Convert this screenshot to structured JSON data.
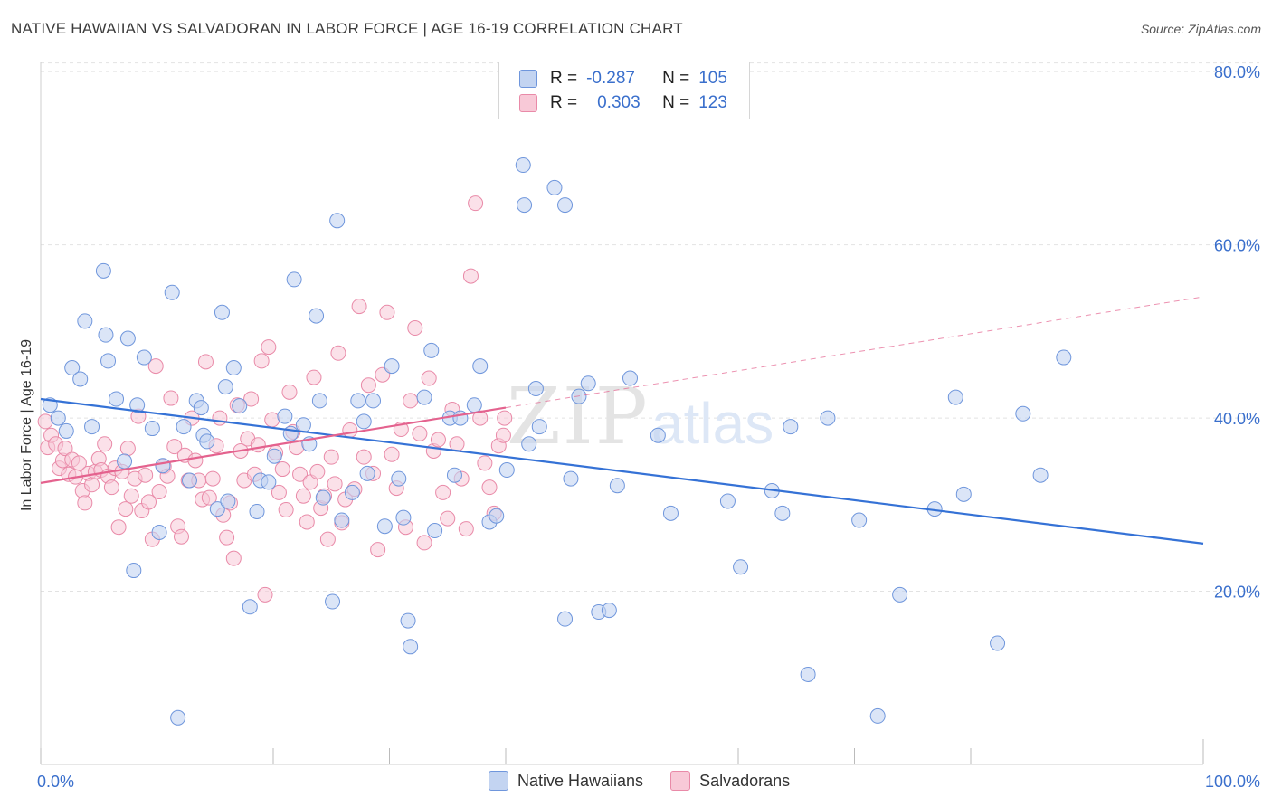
{
  "title": "NATIVE HAWAIIAN VS SALVADORAN IN LABOR FORCE | AGE 16-19 CORRELATION CHART",
  "source": "Source: ZipAtlas.com",
  "watermark": {
    "zip": "ZIP",
    "atlas": "atlas"
  },
  "legend": {
    "r_label": "R =",
    "n_label": "N =",
    "rows": [
      {
        "r": "-0.287",
        "n": "105"
      },
      {
        "r": "0.303",
        "n": "123"
      }
    ]
  },
  "colors": {
    "blue_fill": "#c3d4f1",
    "blue_stroke": "#6f96dc",
    "blue_line": "#3572d6",
    "pink_fill": "#f8c9d7",
    "pink_stroke": "#e98aa8",
    "pink_line": "#e4628e",
    "axis_text": "#3a6fcc",
    "grid": "#e2e2e2"
  },
  "chart_data": {
    "type": "scatter",
    "title": "NATIVE HAWAIIAN VS SALVADORAN IN LABOR FORCE | AGE 16-19 CORRELATION CHART",
    "xlabel": "",
    "ylabel": "In Labor Force | Age 16-19",
    "xlim": [
      0,
      100
    ],
    "ylim": [
      0,
      82
    ],
    "x_tick_labels": [
      "0.0%",
      "100.0%"
    ],
    "y_ticks": [
      20,
      40,
      60,
      80
    ],
    "y_tick_labels": [
      "20.0%",
      "40.0%",
      "60.0%",
      "80.0%"
    ],
    "grid": true,
    "legend_position": "top-center",
    "series": [
      {
        "name": "Native Hawaiians",
        "trend": {
          "x": [
            0,
            100
          ],
          "y": [
            42.2,
            25.5
          ]
        },
        "points": [
          [
            0.8,
            41.5
          ],
          [
            1.5,
            40
          ],
          [
            2.2,
            38.5
          ],
          [
            2.7,
            45.8
          ],
          [
            3.4,
            44.5
          ],
          [
            3.8,
            51.2
          ],
          [
            4.4,
            39
          ],
          [
            5.4,
            57
          ],
          [
            5.6,
            49.6
          ],
          [
            5.8,
            46.6
          ],
          [
            6.5,
            42.2
          ],
          [
            7.2,
            35
          ],
          [
            7.5,
            49.2
          ],
          [
            8.0,
            22.4
          ],
          [
            8.3,
            41.5
          ],
          [
            8.9,
            47
          ],
          [
            9.6,
            38.8
          ],
          [
            10.2,
            26.8
          ],
          [
            10.5,
            34.5
          ],
          [
            11.3,
            54.5
          ],
          [
            11.8,
            5.4
          ],
          [
            12.3,
            39
          ],
          [
            12.8,
            32.8
          ],
          [
            13.4,
            42
          ],
          [
            13.8,
            41.2
          ],
          [
            14.0,
            38
          ],
          [
            14.3,
            37.3
          ],
          [
            15.2,
            29.5
          ],
          [
            15.6,
            52.2
          ],
          [
            15.9,
            43.6
          ],
          [
            16.1,
            30.4
          ],
          [
            16.6,
            45.8
          ],
          [
            17.1,
            41.4
          ],
          [
            18.0,
            18.2
          ],
          [
            18.6,
            29.2
          ],
          [
            18.9,
            32.8
          ],
          [
            19.6,
            32.6
          ],
          [
            20.1,
            35.6
          ],
          [
            21.0,
            40.2
          ],
          [
            21.5,
            38.2
          ],
          [
            21.8,
            56
          ],
          [
            22.6,
            39.2
          ],
          [
            23.1,
            37
          ],
          [
            23.7,
            51.8
          ],
          [
            24.0,
            42
          ],
          [
            24.3,
            30.8
          ],
          [
            25.1,
            18.8
          ],
          [
            25.5,
            62.8
          ],
          [
            25.9,
            28.2
          ],
          [
            26.8,
            31.4
          ],
          [
            27.3,
            42
          ],
          [
            27.8,
            39.6
          ],
          [
            28.1,
            33.6
          ],
          [
            28.6,
            42
          ],
          [
            29.6,
            27.5
          ],
          [
            30.2,
            46
          ],
          [
            30.8,
            33
          ],
          [
            31.2,
            28.5
          ],
          [
            31.6,
            16.6
          ],
          [
            31.8,
            13.6
          ],
          [
            33.0,
            42.4
          ],
          [
            33.6,
            47.8
          ],
          [
            33.9,
            27.0
          ],
          [
            35.2,
            40
          ],
          [
            35.6,
            33.4
          ],
          [
            36.1,
            40
          ],
          [
            37.3,
            41.5
          ],
          [
            37.8,
            46
          ],
          [
            38.6,
            28.0
          ],
          [
            39.2,
            28.7
          ],
          [
            40.1,
            34
          ],
          [
            41.5,
            69.2
          ],
          [
            41.6,
            64.6
          ],
          [
            42.0,
            37
          ],
          [
            42.6,
            43.4
          ],
          [
            42.9,
            39
          ],
          [
            44.2,
            66.6
          ],
          [
            45.1,
            64.6
          ],
          [
            45.1,
            16.8
          ],
          [
            45.6,
            33
          ],
          [
            46.3,
            42.5
          ],
          [
            47.1,
            44
          ],
          [
            48.0,
            17.6
          ],
          [
            48.9,
            17.8
          ],
          [
            49.6,
            32.2
          ],
          [
            50.7,
            44.6
          ],
          [
            53.1,
            38.0
          ],
          [
            54.2,
            29.0
          ],
          [
            59.1,
            30.4
          ],
          [
            60.2,
            22.8
          ],
          [
            62.9,
            31.6
          ],
          [
            63.8,
            29.0
          ],
          [
            64.5,
            39.0
          ],
          [
            66.0,
            10.4
          ],
          [
            67.7,
            40
          ],
          [
            70.4,
            28.2
          ],
          [
            72.0,
            5.6
          ],
          [
            73.9,
            19.6
          ],
          [
            76.9,
            29.5
          ],
          [
            78.7,
            42.4
          ],
          [
            79.4,
            31.2
          ],
          [
            82.3,
            14.0
          ],
          [
            84.5,
            40.5
          ],
          [
            86.0,
            33.4
          ],
          [
            88.0,
            47.0
          ]
        ]
      },
      {
        "name": "Salvadorans",
        "trend": {
          "x": [
            0,
            40
          ],
          "y": [
            32.5,
            41.2
          ]
        },
        "trend_extension": {
          "x": [
            40,
            100
          ],
          "y": [
            41.2,
            54.0
          ]
        },
        "points": [
          [
            0.4,
            39.6
          ],
          [
            0.6,
            36.6
          ],
          [
            0.9,
            38
          ],
          [
            1.3,
            37
          ],
          [
            1.6,
            34.2
          ],
          [
            1.9,
            35.1
          ],
          [
            2.1,
            36.5
          ],
          [
            2.4,
            33.5
          ],
          [
            2.7,
            35.2
          ],
          [
            3.0,
            33.2
          ],
          [
            3.3,
            34.8
          ],
          [
            3.6,
            31.6
          ],
          [
            3.8,
            30.2
          ],
          [
            4.1,
            33.6
          ],
          [
            4.4,
            32.3
          ],
          [
            4.7,
            33.8
          ],
          [
            5.0,
            35.3
          ],
          [
            5.2,
            34.0
          ],
          [
            5.5,
            37.0
          ],
          [
            5.8,
            33.3
          ],
          [
            6.1,
            32.0
          ],
          [
            6.4,
            34.2
          ],
          [
            6.7,
            27.4
          ],
          [
            7.0,
            33.8
          ],
          [
            7.3,
            29.5
          ],
          [
            7.5,
            36.5
          ],
          [
            7.8,
            31.0
          ],
          [
            8.1,
            33.0
          ],
          [
            8.4,
            40.2
          ],
          [
            8.7,
            29.3
          ],
          [
            9.0,
            33.4
          ],
          [
            9.3,
            30.3
          ],
          [
            9.6,
            26.0
          ],
          [
            9.9,
            46.0
          ],
          [
            10.2,
            31.5
          ],
          [
            10.6,
            34.4
          ],
          [
            10.9,
            33.3
          ],
          [
            11.2,
            42.3
          ],
          [
            11.5,
            36.7
          ],
          [
            11.8,
            27.5
          ],
          [
            12.1,
            26.3
          ],
          [
            12.4,
            35.7
          ],
          [
            12.7,
            32.8
          ],
          [
            13.0,
            40.0
          ],
          [
            13.3,
            35.1
          ],
          [
            13.6,
            32.8
          ],
          [
            13.9,
            30.6
          ],
          [
            14.2,
            46.5
          ],
          [
            14.5,
            30.8
          ],
          [
            14.8,
            33.0
          ],
          [
            15.1,
            36.8
          ],
          [
            15.4,
            40.0
          ],
          [
            15.7,
            28.8
          ],
          [
            16.0,
            26.2
          ],
          [
            16.3,
            30.2
          ],
          [
            16.6,
            23.8
          ],
          [
            16.9,
            41.5
          ],
          [
            17.2,
            36.2
          ],
          [
            17.5,
            32.8
          ],
          [
            17.8,
            37.6
          ],
          [
            18.1,
            42.2
          ],
          [
            18.4,
            33.5
          ],
          [
            18.7,
            36.9
          ],
          [
            19.0,
            46.6
          ],
          [
            19.3,
            19.6
          ],
          [
            19.6,
            48.2
          ],
          [
            19.9,
            39.8
          ],
          [
            20.2,
            36.0
          ],
          [
            20.5,
            31.4
          ],
          [
            20.8,
            34.1
          ],
          [
            21.1,
            29.4
          ],
          [
            21.4,
            43.0
          ],
          [
            21.7,
            38.4
          ],
          [
            22.0,
            36.6
          ],
          [
            22.3,
            33.5
          ],
          [
            22.6,
            31.0
          ],
          [
            22.9,
            28.0
          ],
          [
            23.2,
            32.6
          ],
          [
            23.5,
            44.7
          ],
          [
            23.8,
            33.8
          ],
          [
            24.1,
            29.6
          ],
          [
            24.4,
            31.0
          ],
          [
            24.7,
            26.0
          ],
          [
            25.0,
            35.5
          ],
          [
            25.3,
            32.4
          ],
          [
            25.6,
            47.5
          ],
          [
            25.9,
            27.9
          ],
          [
            26.2,
            30.6
          ],
          [
            26.6,
            38.6
          ],
          [
            27.0,
            31.8
          ],
          [
            27.4,
            52.9
          ],
          [
            27.8,
            35.5
          ],
          [
            28.2,
            43.8
          ],
          [
            28.6,
            33.6
          ],
          [
            29.0,
            24.8
          ],
          [
            29.4,
            45.0
          ],
          [
            29.8,
            52.2
          ],
          [
            30.2,
            35.8
          ],
          [
            30.6,
            31.9
          ],
          [
            31.0,
            38.7
          ],
          [
            31.4,
            27.4
          ],
          [
            31.8,
            42.0
          ],
          [
            32.2,
            50.4
          ],
          [
            32.6,
            38.2
          ],
          [
            33.0,
            25.6
          ],
          [
            33.4,
            44.6
          ],
          [
            33.8,
            36.2
          ],
          [
            34.2,
            37.5
          ],
          [
            34.6,
            31.4
          ],
          [
            35.0,
            28.4
          ],
          [
            35.4,
            41.0
          ],
          [
            35.8,
            37.0
          ],
          [
            36.2,
            33.0
          ],
          [
            36.6,
            27.2
          ],
          [
            37.0,
            56.4
          ],
          [
            37.4,
            64.8
          ],
          [
            37.8,
            40.0
          ],
          [
            38.2,
            34.8
          ],
          [
            38.6,
            32.0
          ],
          [
            39.0,
            29.0
          ],
          [
            39.4,
            36.8
          ],
          [
            39.8,
            38.0
          ],
          [
            39.9,
            40.0
          ]
        ]
      }
    ]
  }
}
